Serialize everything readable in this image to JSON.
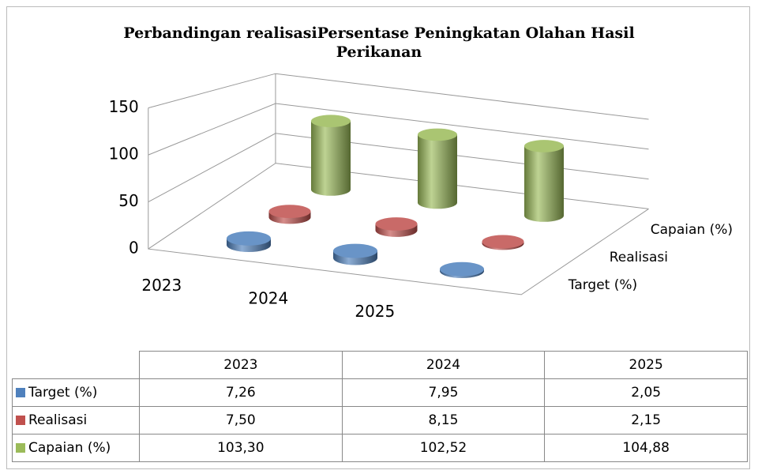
{
  "chart_data": {
    "type": "cylinder3d",
    "title": "Perbandingan realisasiPersentase Peningkatan Olahan Hasil Perikanan",
    "categories": [
      "2023",
      "2024",
      "2025"
    ],
    "series": [
      {
        "name": "Target (%)",
        "color": "#4f81bd",
        "values": [
          7.26,
          7.95,
          2.05
        ],
        "value_labels": [
          "7,26",
          "7,95",
          "2,05"
        ]
      },
      {
        "name": "Realisasi",
        "color": "#c0504d",
        "values": [
          7.5,
          8.15,
          2.15
        ],
        "value_labels": [
          "7,50",
          "8,15",
          "2,15"
        ]
      },
      {
        "name": "Capaian (%)",
        "color": "#9bbb59",
        "values": [
          103.3,
          102.52,
          104.88
        ],
        "value_labels": [
          "103,30",
          "102,52",
          "104,88"
        ]
      }
    ],
    "ylim": [
      0,
      150
    ],
    "yticks": [
      0,
      50,
      100,
      150
    ],
    "grid": true,
    "data_table": true
  }
}
